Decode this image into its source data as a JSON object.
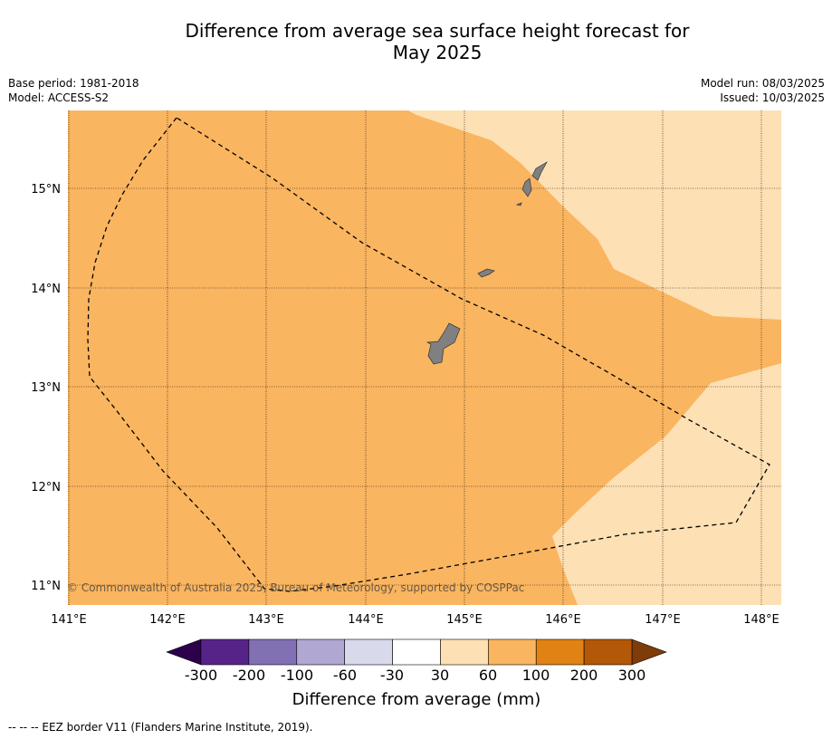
{
  "title_line1": "Difference from average sea surface height forecast for",
  "title_line2": "May 2025",
  "meta": {
    "base_period": "Base period: 1981-2018",
    "model": "Model: ACCESS-S2",
    "model_run": "Model run: 08/03/2025",
    "issued": "Issued: 10/03/2025"
  },
  "map": {
    "lon_range": [
      141.0,
      148.2
    ],
    "lat_range": [
      10.8,
      15.8
    ],
    "lon_ticks": [
      "141°E",
      "142°E",
      "143°E",
      "144°E",
      "145°E",
      "146°E",
      "147°E",
      "148°E"
    ],
    "lat_ticks": [
      "11°N",
      "12°N",
      "13°N",
      "14°N",
      "15°N"
    ],
    "copyright": "© Commonwealth of Australia 2025, Bureau of Meteorology, supported by COSPPac",
    "regions": [
      {
        "range": "60 to 100 mm",
        "color": "#fab560"
      },
      {
        "range": "30 to 60 mm",
        "color": "#fde0b4"
      }
    ],
    "land_color": "#808080"
  },
  "colorbar": {
    "title": "Difference from average (mm)",
    "tick_labels": [
      "-300",
      "-200",
      "-100",
      "-60",
      "-30",
      "30",
      "60",
      "100",
      "200",
      "300"
    ],
    "colors": [
      "#562488",
      "#8270b4",
      "#b0a7d2",
      "#d9d9ec",
      "#ffffff",
      "#fde0b4",
      "#fab560",
      "#e08214",
      "#b35806"
    ],
    "extend_low_color": "#2d004b",
    "extend_high_color": "#7f3b08"
  },
  "footer": "--  --  -- EEZ border V11 (Flanders Marine Institute, 2019)."
}
